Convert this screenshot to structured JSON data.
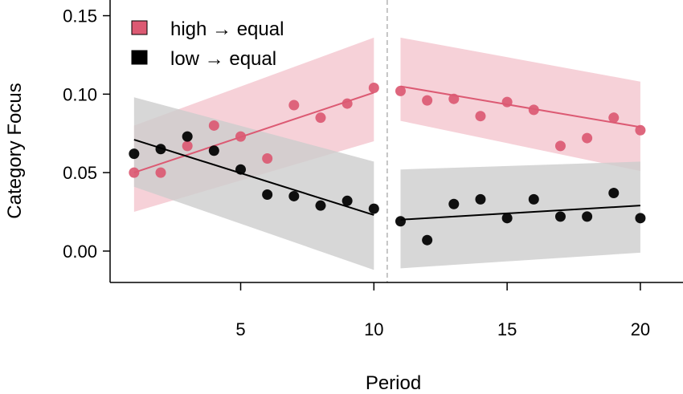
{
  "chart_data": {
    "type": "scatter",
    "xlabel": "Period",
    "ylabel": "Category Focus",
    "xlim": [
      0.1,
      21.6
    ],
    "ylim": [
      -0.02,
      0.16
    ],
    "x_ticks": [
      5,
      10,
      15,
      20
    ],
    "x_tick_labels": [
      "5",
      "10",
      "15",
      "20"
    ],
    "y_ticks": [
      0.0,
      0.05,
      0.1,
      0.15
    ],
    "y_tick_labels": [
      "0.00",
      "0.05",
      "0.10",
      "0.15"
    ],
    "grid": false,
    "legend_position": "top-left",
    "break_after_period": 10.5,
    "series": [
      {
        "name": "high → equal",
        "color": "#dc5a73",
        "band_color": "#f4c6ce",
        "x": [
          1,
          2,
          3,
          4,
          5,
          6,
          7,
          8,
          9,
          10,
          11,
          12,
          13,
          14,
          15,
          16,
          17,
          18,
          19,
          20
        ],
        "y": [
          0.05,
          0.05,
          0.067,
          0.08,
          0.073,
          0.059,
          0.093,
          0.085,
          0.094,
          0.104,
          0.102,
          0.096,
          0.097,
          0.086,
          0.095,
          0.09,
          0.067,
          0.072,
          0.085,
          0.077
        ],
        "fit": [
          {
            "x": [
              1,
              10
            ],
            "y": [
              0.05,
              0.101
            ],
            "ci_lower": [
              0.025,
              0.07
            ],
            "ci_upper": [
              0.08,
              0.136
            ]
          },
          {
            "x": [
              11,
              20
            ],
            "y": [
              0.105,
              0.079
            ],
            "ci_lower": [
              0.083,
              0.051
            ],
            "ci_upper": [
              0.136,
              0.108
            ]
          }
        ]
      },
      {
        "name": "low → equal",
        "color": "#000000",
        "band_color": "#cdcdcd",
        "x": [
          1,
          2,
          3,
          4,
          5,
          6,
          7,
          8,
          9,
          10,
          11,
          12,
          13,
          14,
          15,
          16,
          17,
          18,
          19,
          20
        ],
        "y": [
          0.062,
          0.065,
          0.073,
          0.064,
          0.052,
          0.036,
          0.035,
          0.029,
          0.032,
          0.027,
          0.019,
          0.007,
          0.03,
          0.033,
          0.021,
          0.033,
          0.022,
          0.022,
          0.037,
          0.021
        ],
        "fit": [
          {
            "x": [
              1,
              10
            ],
            "y": [
              0.071,
              0.023
            ],
            "ci_lower": [
              0.041,
              -0.012
            ],
            "ci_upper": [
              0.098,
              0.057
            ]
          },
          {
            "x": [
              11,
              20
            ],
            "y": [
              0.02,
              0.029
            ],
            "ci_lower": [
              -0.011,
              -0.001
            ],
            "ci_upper": [
              0.052,
              0.057
            ]
          }
        ]
      }
    ]
  }
}
